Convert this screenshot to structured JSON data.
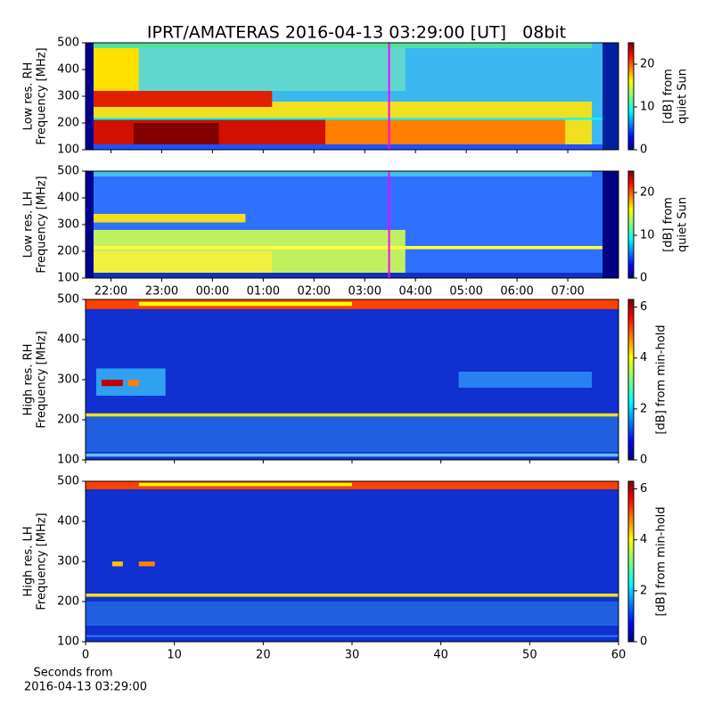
{
  "chart_data": [
    {
      "type": "heatmap",
      "title": "IPRT/AMATERAS 2016-04-13 03:29:00 [UT]   08bit",
      "y_label": [
        "Low res. RH",
        "Frequency [MHz]"
      ],
      "ylim": [
        100,
        500
      ],
      "yticks": [
        100,
        200,
        300,
        400,
        500
      ],
      "xlim": [
        21.5,
        32
      ],
      "colormap": "jet",
      "colorbar_label": [
        "[dB] from",
        "quiet Sun"
      ],
      "zlim": [
        0,
        25
      ],
      "zticks": [
        0,
        10,
        20
      ],
      "marker_x": 27.48,
      "marker_color": "#ff00ff"
    },
    {
      "type": "heatmap",
      "y_label": [
        "Low res. LH",
        "Frequency [MHz]"
      ],
      "ylim": [
        100,
        500
      ],
      "yticks": [
        100,
        200,
        300,
        400,
        500
      ],
      "xlim": [
        21.5,
        32
      ],
      "xticks": [
        {
          "value": 22,
          "label": "22:00"
        },
        {
          "value": 23,
          "label": "23:00"
        },
        {
          "value": 24,
          "label": "00:00"
        },
        {
          "value": 25,
          "label": "01:00"
        },
        {
          "value": 26,
          "label": "02:00"
        },
        {
          "value": 27,
          "label": "03:00"
        },
        {
          "value": 28,
          "label": "04:00"
        },
        {
          "value": 29,
          "label": "05:00"
        },
        {
          "value": 30,
          "label": "06:00"
        },
        {
          "value": 31,
          "label": "07:00"
        }
      ],
      "colormap": "jet",
      "colorbar_label": [
        "[dB] from",
        "quiet Sun"
      ],
      "zlim": [
        0,
        25
      ],
      "zticks": [
        0,
        10,
        20
      ],
      "marker_x": 27.48,
      "marker_color": "#ff00ff"
    },
    {
      "type": "heatmap",
      "y_label": [
        "High res. RH",
        "Frequency [MHz]"
      ],
      "ylim": [
        100,
        500
      ],
      "yticks": [
        100,
        200,
        300,
        400,
        500
      ],
      "xlim": [
        0,
        60
      ],
      "colormap": "jet",
      "colorbar_label": [
        "[dB] from min-hold"
      ],
      "zlim": [
        0,
        6.3
      ],
      "zticks": [
        0,
        2,
        4,
        6
      ]
    },
    {
      "type": "heatmap",
      "y_label": [
        "High res. LH",
        "Frequency [MHz]"
      ],
      "ylim": [
        100,
        500
      ],
      "yticks": [
        100,
        200,
        300,
        400,
        500
      ],
      "xlim": [
        0,
        60
      ],
      "xticks": [
        0,
        10,
        20,
        30,
        40,
        50,
        60
      ],
      "x_label": [
        "Seconds from",
        "2016-04-13 03:29:00"
      ],
      "colormap": "jet",
      "colorbar_label": [
        "[dB] from min-hold"
      ],
      "zlim": [
        0,
        6.3
      ],
      "zticks": [
        0,
        2,
        4,
        6
      ]
    }
  ]
}
